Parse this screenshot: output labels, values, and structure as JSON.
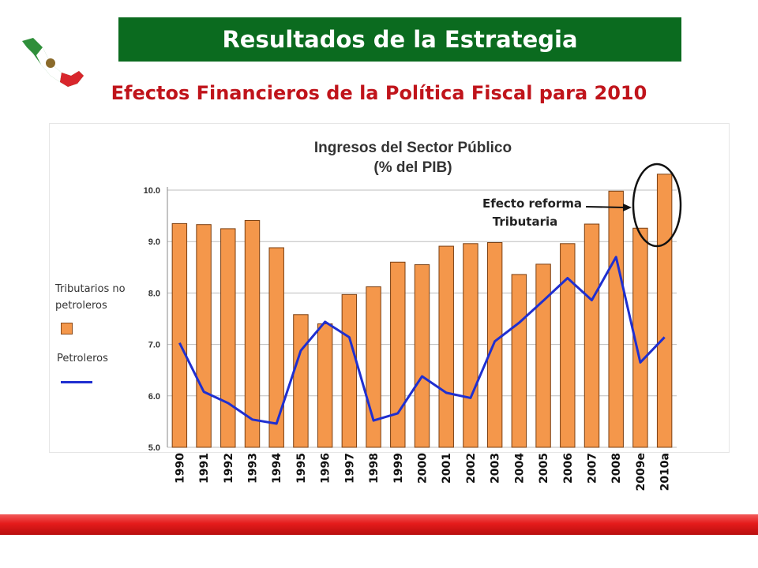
{
  "header": {
    "title": "Resultados de la Estrategia"
  },
  "subtitle": "Efectos Financieros de la Política Fiscal  para 2010",
  "colors": {
    "header_bg": "#0b6b1f",
    "subtitle": "#c0141b",
    "bars": "#f4974b",
    "line": "#1f2fd0",
    "footer": "#e51b1b"
  },
  "logo_icon": "mexico-map-flag-icon",
  "chart_data": {
    "type": "bar",
    "title_line1": "Ingresos del Sector Público",
    "title_line2": "(% del PIB)",
    "categories": [
      "1990",
      "1991",
      "1992",
      "1993",
      "1994",
      "1995",
      "1996",
      "1997",
      "1998",
      "1999",
      "2000",
      "2001",
      "2002",
      "2003",
      "2004",
      "2005",
      "2006",
      "2007",
      "2008",
      "2009e",
      "2010a"
    ],
    "ylim": [
      5.0,
      10.0
    ],
    "yticks": [
      "5.0",
      "6.0",
      "7.0",
      "8.0",
      "9.0",
      "10.0"
    ],
    "grid": true,
    "legend_position": "left",
    "series": [
      {
        "name": "Tributarios no petroleros",
        "type": "bar",
        "values": [
          9.35,
          9.33,
          9.25,
          9.41,
          8.88,
          7.58,
          7.4,
          7.97,
          8.12,
          8.6,
          8.55,
          8.91,
          8.96,
          8.98,
          8.36,
          8.56,
          8.96,
          9.34,
          9.98,
          9.26,
          10.31
        ]
      },
      {
        "name": "Petroleros",
        "type": "line",
        "values": [
          7.03,
          6.08,
          5.86,
          5.54,
          5.46,
          6.88,
          7.44,
          7.14,
          5.52,
          5.66,
          6.38,
          6.06,
          5.96,
          7.06,
          7.42,
          7.85,
          8.29,
          7.86,
          8.7,
          6.65,
          7.14
        ]
      }
    ],
    "annotation": {
      "line1": "Efecto reforma",
      "line2": "Tributaria"
    }
  }
}
